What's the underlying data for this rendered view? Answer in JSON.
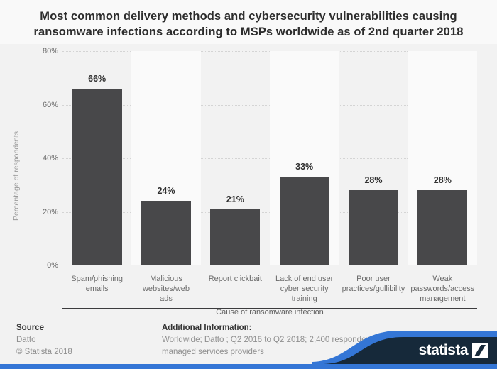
{
  "title_lines": [
    "Most common delivery methods and cybersecurity vulnerabilities causing",
    "ransomware infections according to MSPs worldwide as of 2nd quarter 2018"
  ],
  "chart_data": {
    "type": "bar",
    "categories": [
      "Spam/phishing emails",
      "Malicious websites/web ads",
      "Report clickbait",
      "Lack of end user cyber security training",
      "Poor user practices/gullibility",
      "Weak passwords/access management"
    ],
    "category_label_lines": [
      [
        "Spam/phishing",
        "emails"
      ],
      [
        "Malicious",
        "websites/web",
        "ads"
      ],
      [
        "Report clickbait"
      ],
      [
        "Lack of end user",
        "cyber security",
        "training"
      ],
      [
        "Poor user",
        "practices/gullibility"
      ],
      [
        "Weak",
        "passwords/access",
        "management"
      ]
    ],
    "values": [
      66,
      24,
      21,
      33,
      28,
      28
    ],
    "value_labels": [
      "66%",
      "24%",
      "21%",
      "33%",
      "28%",
      "28%"
    ],
    "title": "Most common delivery methods and cybersecurity vulnerabilities causing ransomware infections according to MSPs worldwide as of 2nd quarter 2018",
    "xlabel": "Cause of ransomware infection",
    "ylabel": "Percentage of respondents",
    "y_ticks_top_to_bottom": [
      "80%",
      "60%",
      "40%",
      "20%",
      "0%"
    ],
    "ylim": [
      0,
      80
    ],
    "grid": "horizontal dotted",
    "legend": "none",
    "bar_color": "#48484a",
    "stripe_color": "#fafafa"
  },
  "footer": {
    "source_heading": "Source",
    "source_lines": [
      "Datto",
      "© Statista 2018"
    ],
    "additional_heading": "Additional Information:",
    "additional_lines": [
      "Worldwide; Datto ; Q2 2016 to Q2 2018; 2,400 respondents;",
      "managed services providers"
    ]
  },
  "branding": {
    "logo_text": "statista",
    "navy": "#16293a",
    "blue": "#3476d6"
  }
}
